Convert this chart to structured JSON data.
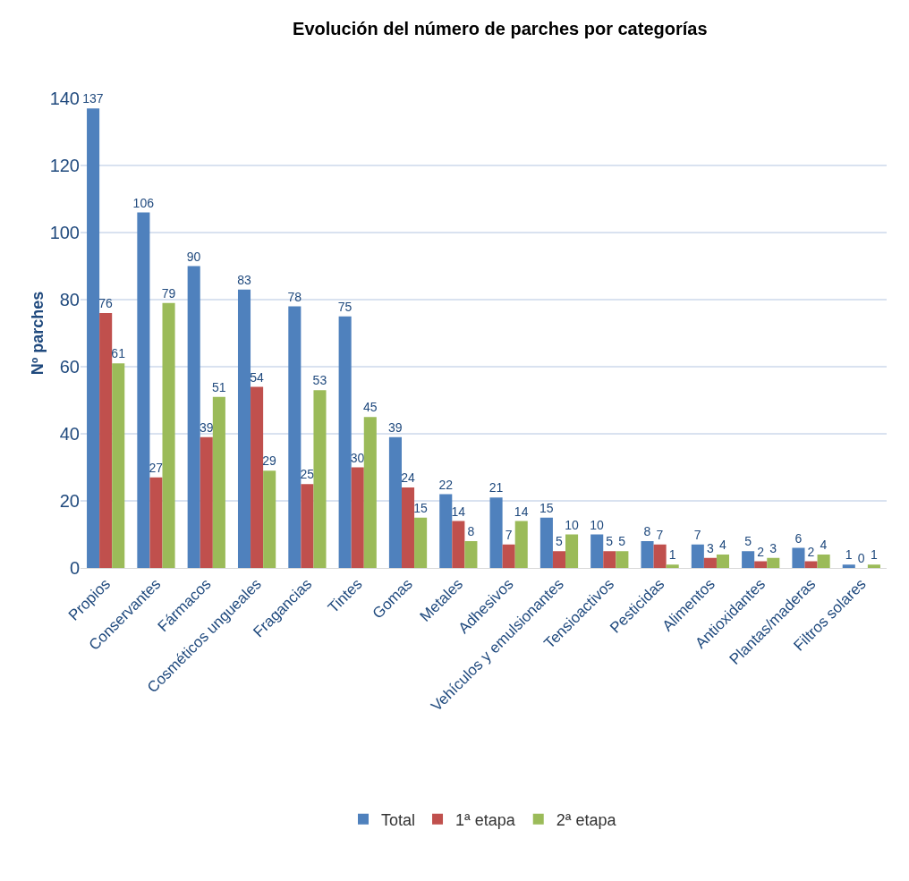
{
  "chart_data": {
    "type": "bar",
    "title": "Evolución del número de parches por categorías",
    "ylabel": "Nº parches",
    "categories": [
      "Propios",
      "Conservantes",
      "Fármacos",
      "Cosméticos ungueales",
      "Fragancias",
      "Tintes",
      "Gomas",
      "Metales",
      "Adhesivos",
      "Vehículos y emulsionantes",
      "Tensioactivos",
      "Pesticidas",
      "Alimentos",
      "Antioxidantes",
      "Plantas/maderas",
      "Filtros solares"
    ],
    "series": [
      {
        "name": "Total",
        "color": "#4f81bd",
        "values": [
          137,
          106,
          90,
          83,
          78,
          75,
          39,
          22,
          21,
          15,
          10,
          8,
          7,
          5,
          6,
          1
        ]
      },
      {
        "name": "1ª etapa",
        "color": "#c0504d",
        "values": [
          76,
          27,
          39,
          54,
          25,
          30,
          24,
          14,
          7,
          5,
          5,
          7,
          3,
          2,
          2,
          0
        ]
      },
      {
        "name": "2ª etapa",
        "color": "#9bbb59",
        "values": [
          61,
          79,
          51,
          29,
          53,
          45,
          15,
          8,
          14,
          10,
          5,
          1,
          4,
          3,
          4,
          1
        ]
      }
    ],
    "ylim": [
      0,
      140
    ],
    "yticks": [
      0,
      20,
      40,
      60,
      80,
      100,
      120,
      140
    ],
    "grid": "y",
    "legend": "bottom",
    "data_labels": true
  }
}
